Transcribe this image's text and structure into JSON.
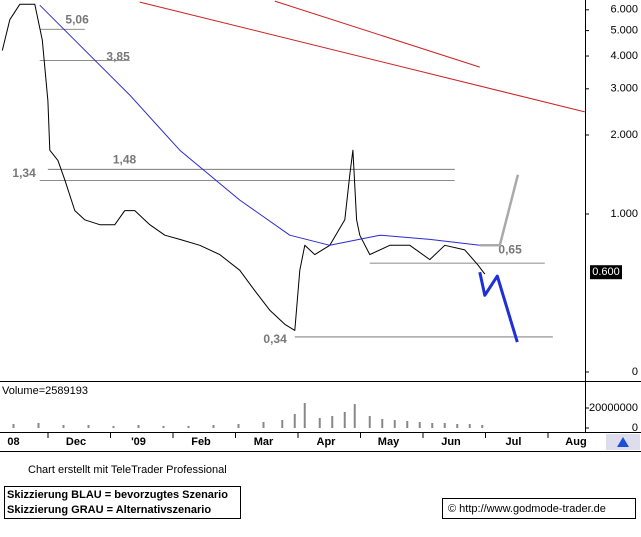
{
  "chart_data": {
    "type": "line",
    "log_scale": true,
    "xlim": [
      -0.216,
      9.144
    ],
    "ylim": [
      0.233,
      6.54
    ],
    "xticks": [
      {
        "value": 0,
        "label": "08"
      },
      {
        "value": 1,
        "label": "Dec"
      },
      {
        "value": 2,
        "label": "'09"
      },
      {
        "value": 3,
        "label": "Feb"
      },
      {
        "value": 4,
        "label": "Mar"
      },
      {
        "value": 5,
        "label": "Apr"
      },
      {
        "value": 6,
        "label": "May"
      },
      {
        "value": 7,
        "label": "Jun"
      },
      {
        "value": 8,
        "label": "Jul"
      },
      {
        "value": 9,
        "label": "Aug"
      }
    ],
    "yticks": [
      {
        "value": 6,
        "label": "6.000"
      },
      {
        "value": 5,
        "label": "5.000"
      },
      {
        "value": 4,
        "label": "4.000"
      },
      {
        "value": 3,
        "label": "3.000"
      },
      {
        "value": 2,
        "label": "2.000"
      },
      {
        "value": 1,
        "label": "1.000"
      },
      {
        "value": 0.25,
        "label": "0"
      }
    ],
    "last": {
      "value": 0.6,
      "label": "0.600"
    },
    "series": [
      {
        "color": "#000000",
        "x": [
          -0.18,
          -0.06,
          0.1,
          0.34,
          0.46,
          0.55,
          0.58,
          0.71,
          0.82,
          0.98,
          1.14,
          1.38,
          1.62,
          1.78,
          1.94,
          2.18,
          2.42,
          2.66,
          2.98,
          3.3,
          3.62,
          3.86,
          4.1,
          4.34,
          4.5,
          4.58,
          4.66,
          4.82,
          5.06,
          5.3,
          5.38,
          5.43,
          5.49,
          5.54,
          5.7,
          6.02,
          6.34,
          6.66,
          6.9,
          7.22,
          7.43,
          7.54
        ],
        "values": [
          4.2,
          5.5,
          6.3,
          6.3,
          4.6,
          2.7,
          1.75,
          1.6,
          1.35,
          1.03,
          0.95,
          0.91,
          0.91,
          1.03,
          1.03,
          0.91,
          0.83,
          0.8,
          0.76,
          0.7,
          0.61,
          0.51,
          0.43,
          0.38,
          0.36,
          0.61,
          0.76,
          0.7,
          0.76,
          0.95,
          1.41,
          1.75,
          0.95,
          0.83,
          0.7,
          0.76,
          0.76,
          0.67,
          0.76,
          0.73,
          0.64,
          0.59
        ]
      },
      {
        "color": "#2a2ad0",
        "x": [
          0.42,
          1.06,
          1.86,
          2.66,
          3.62,
          4.42,
          5.06,
          5.86,
          6.66,
          7.46
        ],
        "values": [
          6.25,
          4.4,
          2.84,
          1.75,
          1.13,
          0.83,
          0.76,
          0.83,
          0.8,
          0.76
        ]
      },
      {
        "color": "#cc2222",
        "x": [
          2.02,
          9.14
        ],
        "values": [
          6.42,
          2.45
        ]
      },
      {
        "color": "#cc2222",
        "x": [
          4.18,
          7.46
        ],
        "values": [
          6.48,
          3.63
        ]
      },
      {
        "color": "#1f2fd8",
        "x": [
          7.46,
          7.54,
          7.74,
          8.06
        ],
        "values": [
          0.6,
          0.49,
          0.58,
          0.325
        ]
      },
      {
        "color": "#aaaaaa",
        "x": [
          7.46,
          7.78,
          8.07
        ],
        "values": [
          0.76,
          0.76,
          1.41
        ]
      }
    ],
    "levels": [
      {
        "value": 5.06,
        "label": "5,06",
        "x": [
          0.42,
          1.14
        ]
      },
      {
        "value": 3.85,
        "label": "3,85",
        "x": [
          0.42,
          1.86
        ]
      },
      {
        "value": 1.48,
        "label": "1,48",
        "x": [
          0.55,
          7.06
        ]
      },
      {
        "value": 1.34,
        "label": "1,34",
        "x": [
          0.42,
          7.06
        ]
      },
      {
        "value": 0.65,
        "label": "0,65",
        "x": [
          5.7,
          8.5
        ]
      },
      {
        "value": 0.34,
        "label": "0,34",
        "x": [
          4.5,
          8.63
        ]
      }
    ],
    "volume": {
      "label": "Volume=2589193",
      "ylim": [
        0,
        43000000
      ],
      "yticks": [
        0,
        20000000
      ],
      "color": "#888888",
      "x": [
        0,
        0.4,
        0.8,
        1.2,
        1.6,
        2.0,
        2.4,
        2.8,
        3.2,
        3.6,
        4.0,
        4.3,
        4.5,
        4.66,
        4.9,
        5.1,
        5.3,
        5.46,
        5.7,
        5.9,
        6.1,
        6.3,
        6.5,
        6.7,
        6.9,
        7.1,
        7.3,
        7.5
      ],
      "values": [
        4000000,
        5000000,
        3000000,
        3000000,
        2000000,
        3000000,
        2000000,
        2000000,
        3000000,
        4000000,
        6000000,
        8000000,
        14000000,
        25000000,
        10000000,
        12000000,
        16000000,
        24000000,
        12000000,
        9000000,
        8000000,
        7000000,
        6000000,
        5000000,
        5000000,
        4000000,
        4000000,
        3000000
      ]
    }
  },
  "footer": {
    "credit": "Chart erstellt mit TeleTrader Professional",
    "legend_blue": "Skizzierung BLAU = bevorzugtes Szenario",
    "legend_gray": "Skizzierung GRAU = Alternativszenario",
    "source": "© http://www.godmode-trader.de"
  }
}
